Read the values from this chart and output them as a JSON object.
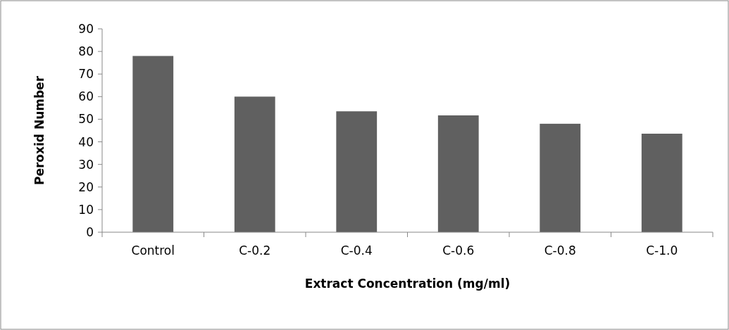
{
  "chart_data": {
    "type": "bar",
    "xlabel": "Extract Concentration (mg/ml)",
    "ylabel": "Peroxid Number",
    "categories": [
      "Control",
      "C-0.2",
      "C-0.4",
      "C-0.6",
      "C-0.8",
      "C-1.0"
    ],
    "values": [
      78,
      60,
      53.5,
      51.7,
      48,
      43.6
    ],
    "color": "#606060",
    "ylim": [
      0,
      90
    ],
    "yticks": [
      0,
      10,
      20,
      30,
      40,
      50,
      60,
      70,
      80,
      90
    ],
    "grid": false
  }
}
